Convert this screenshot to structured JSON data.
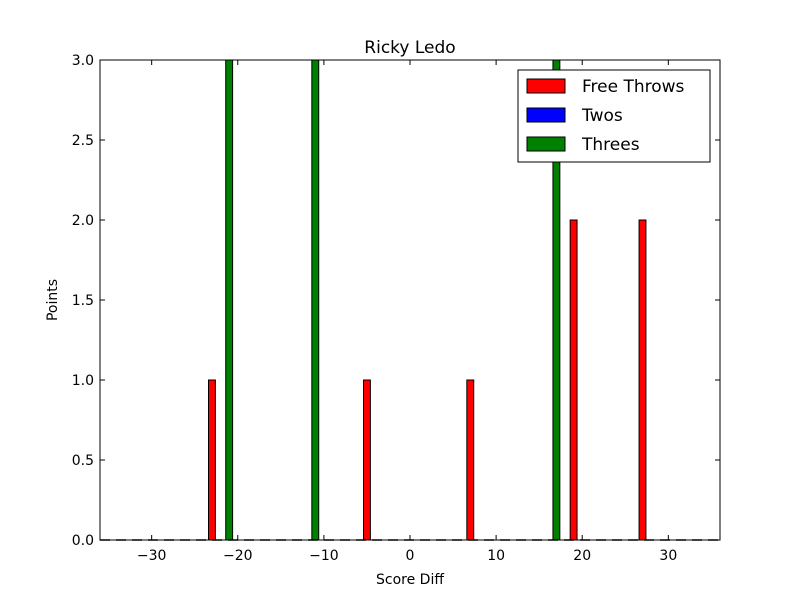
{
  "chart_data": {
    "type": "bar",
    "title": "Ricky Ledo",
    "xlabel": "Score Diff",
    "ylabel": "Points",
    "xlim": [
      -36,
      36
    ],
    "ylim": [
      0,
      3.0
    ],
    "xticks": [
      -30,
      -20,
      -10,
      0,
      10,
      20,
      30
    ],
    "xtick_labels": [
      "−30",
      "−20",
      "−10",
      "0",
      "10",
      "20",
      "30"
    ],
    "yticks": [
      0.0,
      0.5,
      1.0,
      1.5,
      2.0,
      2.5,
      3.0
    ],
    "ytick_labels": [
      "0.0",
      "0.5",
      "1.0",
      "1.5",
      "2.0",
      "2.5",
      "3.0"
    ],
    "grid": false,
    "legend_position": "top-right",
    "series": [
      {
        "name": "Free Throws",
        "color": "#ff0000",
        "points": [
          {
            "x": -23,
            "y": 1
          },
          {
            "x": -5,
            "y": 1
          },
          {
            "x": 7,
            "y": 1
          },
          {
            "x": 19,
            "y": 2
          },
          {
            "x": 27,
            "y": 2
          }
        ]
      },
      {
        "name": "Twos",
        "color": "#0000ff",
        "points": []
      },
      {
        "name": "Threes",
        "color": "#008000",
        "points": [
          {
            "x": -21,
            "y": 3
          },
          {
            "x": -11,
            "y": 3
          },
          {
            "x": 17,
            "y": 3
          }
        ]
      }
    ]
  }
}
